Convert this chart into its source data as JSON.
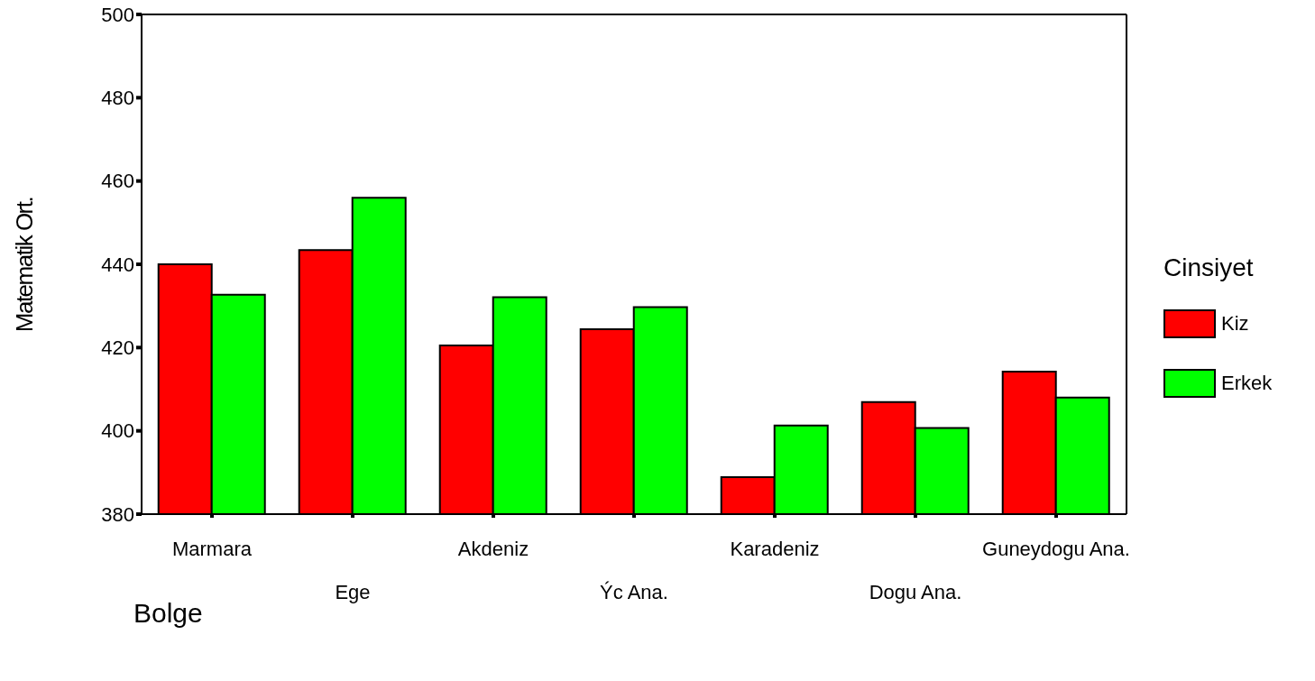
{
  "chart_data": {
    "type": "bar",
    "xlabel": "Bolge",
    "ylabel": "Matematik Ort.",
    "legend_title": "Cinsiyet",
    "categories": [
      "Marmara",
      "Ege",
      "Akdeniz",
      "Ýc Ana.",
      "Karadeniz",
      "Dogu Ana.",
      "Guneydogu Ana."
    ],
    "series": [
      {
        "name": "Kiz",
        "color": "#ff0000",
        "values": [
          440,
          443.4,
          420.5,
          424.4,
          388.9,
          406.9,
          414.2
        ]
      },
      {
        "name": "Erkek",
        "color": "#00ff00",
        "values": [
          432.7,
          456,
          432.1,
          429.7,
          401.3,
          400.7,
          408
        ]
      }
    ],
    "ylim": [
      380,
      500
    ],
    "yticks": [
      380,
      400,
      420,
      440,
      460,
      480,
      500
    ],
    "grid": false,
    "legend": "right"
  }
}
